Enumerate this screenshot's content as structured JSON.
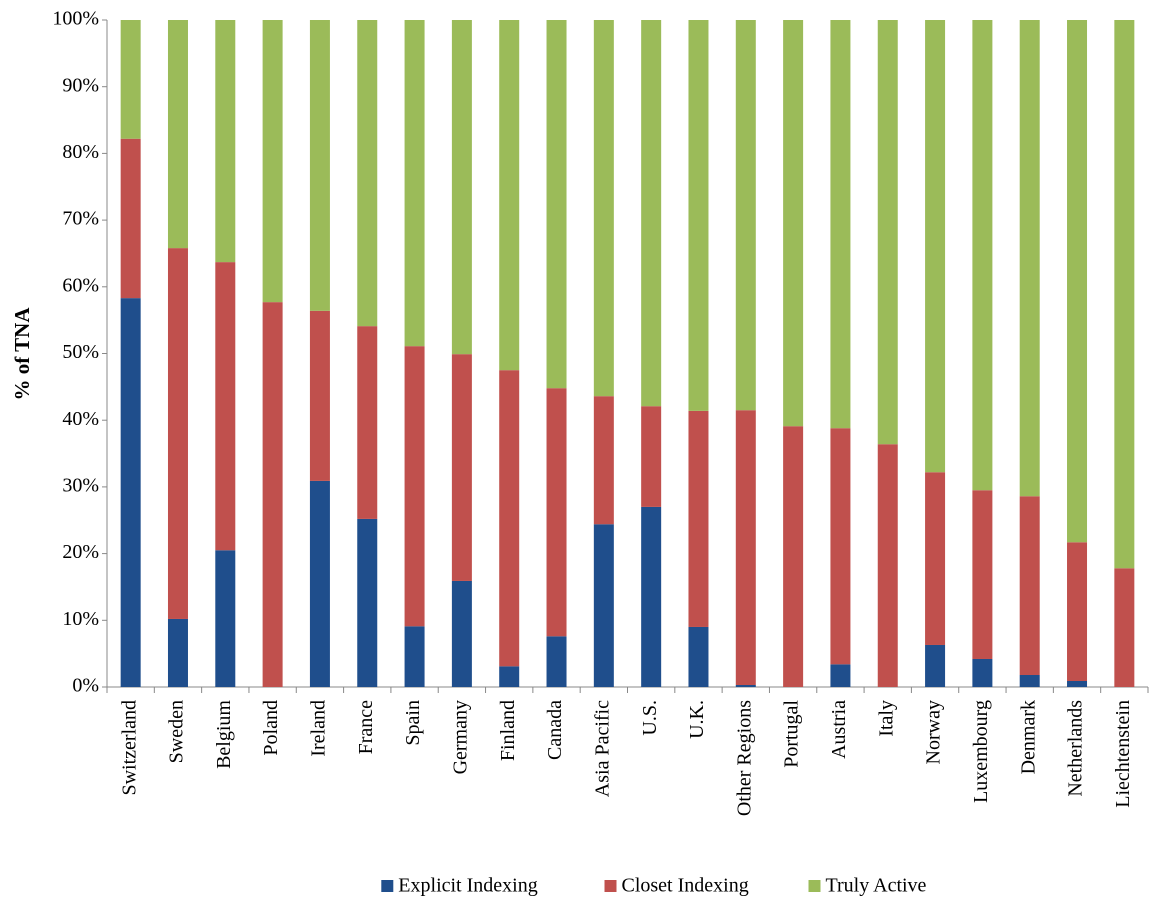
{
  "chart_data": {
    "type": "stacked-bar",
    "y_label": "% of TNA",
    "categories": [
      "Switzerland",
      "Sweden",
      "Belgium",
      "Poland",
      "Ireland",
      "France",
      "Spain",
      "Germany",
      "Finland",
      "Canada",
      "Asia Pacific",
      "U.S.",
      "U.K.",
      "Other Regions",
      "Portugal",
      "Austria",
      "Italy",
      "Norway",
      "Luxembourg",
      "Denmark",
      "Netherlands",
      "Liechtenstein"
    ],
    "series": [
      {
        "name": "Explicit Indexing",
        "color": "#1f4e8c",
        "values": [
          58.3,
          10.2,
          20.5,
          0,
          30.9,
          25.2,
          9.1,
          15.9,
          3.1,
          7.6,
          24.4,
          27.0,
          9.0,
          0.3,
          0,
          3.4,
          0,
          6.3,
          4.2,
          1.8,
          0.9,
          0
        ]
      },
      {
        "name": "Closet Indexing",
        "color": "#c0504d",
        "values": [
          23.9,
          55.6,
          43.2,
          57.7,
          25.5,
          28.9,
          42.0,
          34.0,
          44.4,
          37.2,
          19.2,
          15.1,
          32.4,
          41.2,
          39.1,
          35.4,
          36.4,
          25.9,
          25.3,
          26.8,
          20.8,
          17.8
        ]
      },
      {
        "name": "Truly Active",
        "color": "#9bbb59",
        "values": [
          17.8,
          34.2,
          36.3,
          42.3,
          43.6,
          45.9,
          48.9,
          50.1,
          52.5,
          55.2,
          56.4,
          57.9,
          58.6,
          58.5,
          60.9,
          61.2,
          63.6,
          67.8,
          70.5,
          71.4,
          78.3,
          82.2
        ]
      }
    ],
    "ylim": [
      0,
      100
    ],
    "yticks": [
      {
        "value": 0,
        "label": "0%"
      },
      {
        "value": 10,
        "label": "10%"
      },
      {
        "value": 20,
        "label": "20%"
      },
      {
        "value": 30,
        "label": "30%"
      },
      {
        "value": 40,
        "label": "40%"
      },
      {
        "value": 50,
        "label": "50%"
      },
      {
        "value": 60,
        "label": "60%"
      },
      {
        "value": 70,
        "label": "70%"
      },
      {
        "value": 80,
        "label": "80%"
      },
      {
        "value": 90,
        "label": "90%"
      },
      {
        "value": 100,
        "label": "100%"
      }
    ],
    "grid": false,
    "legend": "bottom"
  }
}
